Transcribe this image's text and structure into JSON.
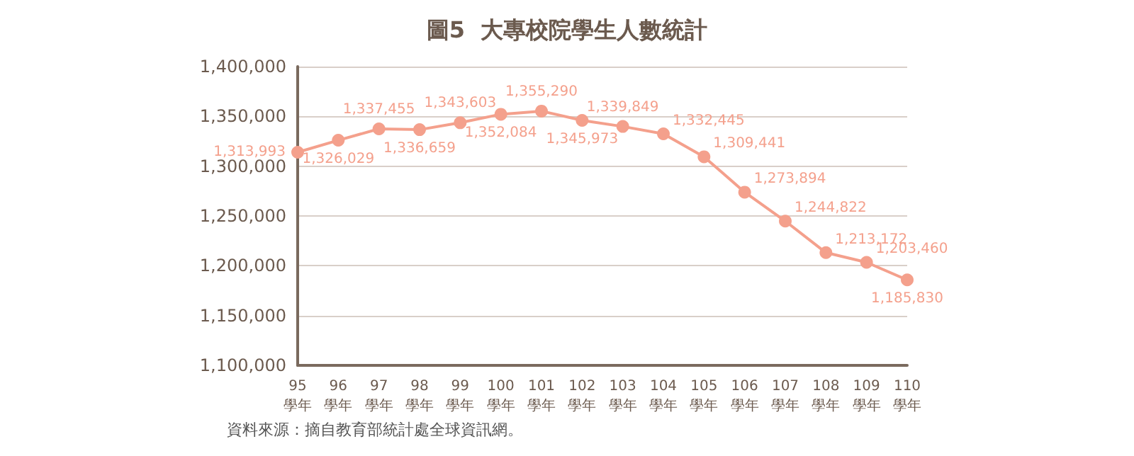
{
  "chart_data": {
    "type": "line",
    "title": "圖5  大專校院學生人數統計",
    "categories": [
      "95\n學年",
      "96\n學年",
      "97\n學年",
      "98\n學年",
      "99\n學年",
      "100\n學年",
      "101\n學年",
      "102\n學年",
      "103\n學年",
      "104\n學年",
      "105\n學年",
      "106\n學年",
      "107\n學年",
      "108\n學年",
      "109\n學年",
      "110\n學年"
    ],
    "series": [
      {
        "color": "#f4a08c",
        "values": [
          1313993,
          1326029,
          1337455,
          1336659,
          1343603,
          1352084,
          1355290,
          1345973,
          1339849,
          1332445,
          1309441,
          1273894,
          1244822,
          1213172,
          1203460,
          1185830
        ]
      }
    ],
    "ylim": [
      1100000,
      1400000
    ],
    "yticks": [
      {
        "value": 1100000,
        "label": "1,100,000"
      },
      {
        "value": 1150000,
        "label": "1,150,000"
      },
      {
        "value": 1200000,
        "label": "1,200,000"
      },
      {
        "value": 1250000,
        "label": "1,250,000"
      },
      {
        "value": 1300000,
        "label": "1,300,000"
      },
      {
        "value": 1350000,
        "label": "1,350,000"
      },
      {
        "value": 1400000,
        "label": "1,400,000"
      }
    ],
    "value_labels": [
      "1,313,993",
      "1,326,029",
      "1,337,455",
      "1,336,659",
      "1,343,603",
      "1,352,084",
      "1,355,290",
      "1,345,973",
      "1,339,849",
      "1,332,445",
      "1,309,441",
      "1,273,894",
      "1,244,822",
      "1,213,172",
      "1,203,460",
      "1,185,830"
    ],
    "grid": "y",
    "marker": "circle",
    "line_style": "solid",
    "annotations": [
      "資料來源：摘自教育部統計處全球資訊網。"
    ]
  }
}
